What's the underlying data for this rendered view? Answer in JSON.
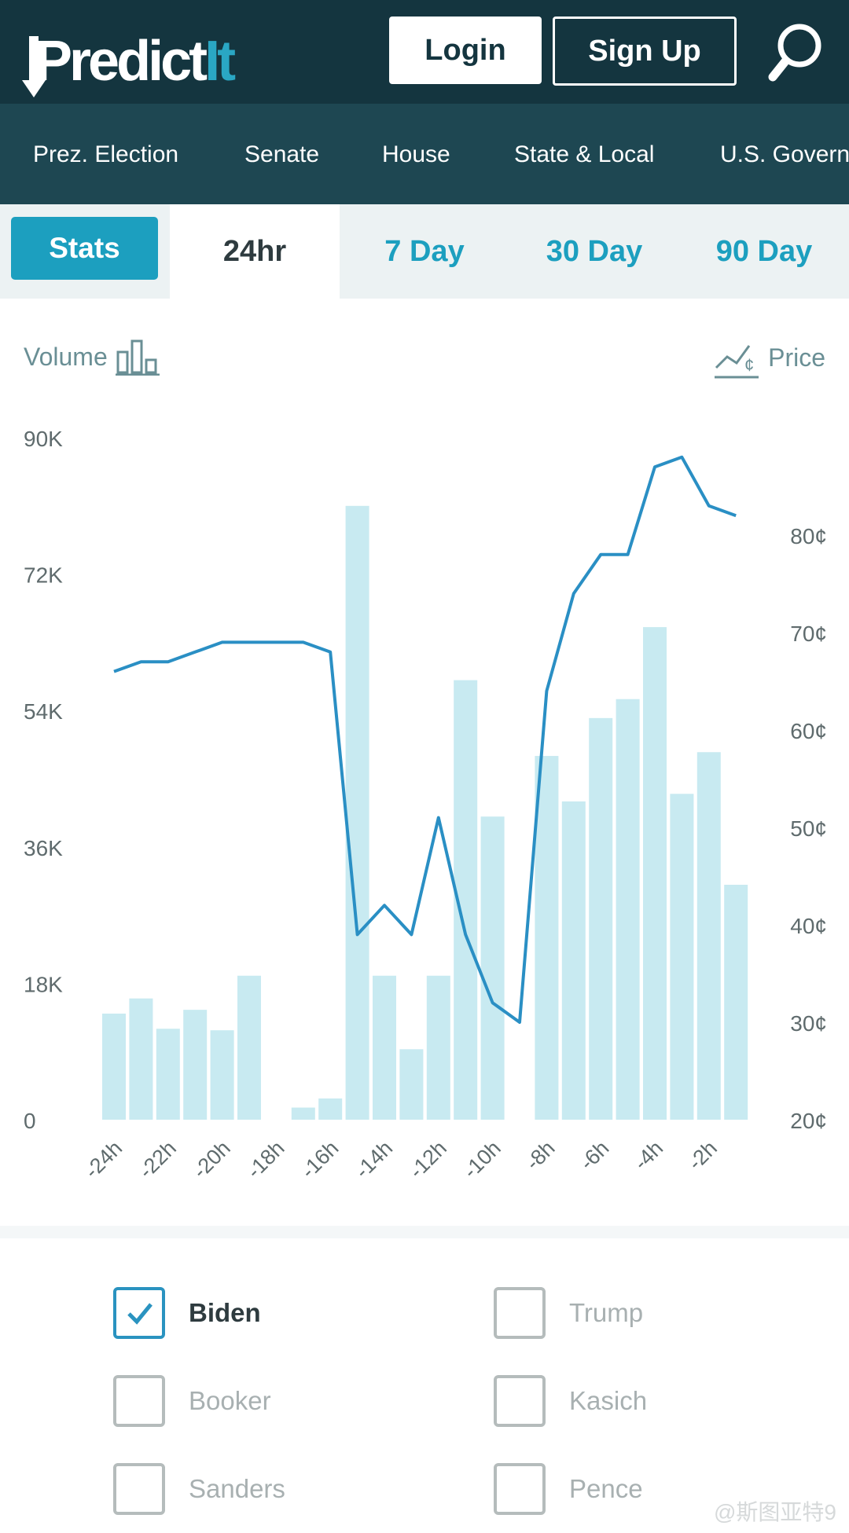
{
  "header": {
    "logo_main": "Predict",
    "logo_accent": "It",
    "login_label": "Login",
    "signup_label": "Sign Up"
  },
  "nav": {
    "items": [
      "Prez. Election",
      "Senate",
      "House",
      "State & Local",
      "U.S. Govern"
    ]
  },
  "tabs": {
    "stats": "Stats",
    "t24": "24hr",
    "t7": "7 Day",
    "t30": "30 Day",
    "t90": "90 Day"
  },
  "chart_labels": {
    "volume": "Volume",
    "price": "Price"
  },
  "chart_data": {
    "type": "bar+line",
    "categories": [
      "-24h",
      "-23h",
      "-22h",
      "-21h",
      "-20h",
      "-19h",
      "-18h",
      "-17h",
      "-16h",
      "-15h",
      "-14h",
      "-13h",
      "-12h",
      "-11h",
      "-10h",
      "-9h",
      "-8h",
      "-7h",
      "-6h",
      "-5h",
      "-4h",
      "-3h",
      "-2h",
      "-1h"
    ],
    "x_tick_labels": [
      "-24h",
      "-22h",
      "-20h",
      "-18h",
      "-16h",
      "-14h",
      "-12h",
      "-10h",
      "-8h",
      "-6h",
      "-4h",
      "-2h"
    ],
    "volume_values": [
      14000,
      16000,
      12000,
      14500,
      11800,
      19000,
      0,
      1600,
      2800,
      81000,
      19000,
      9300,
      19000,
      58000,
      40000,
      0,
      48000,
      42000,
      53000,
      55500,
      65000,
      43000,
      48500,
      31000
    ],
    "price_values": [
      66,
      67,
      67,
      68,
      69,
      69,
      69,
      69,
      68,
      39,
      42,
      39,
      51,
      39,
      32,
      30,
      64,
      74,
      78,
      78,
      87,
      88,
      83,
      82
    ],
    "volume_ticks": [
      "0",
      "18K",
      "36K",
      "54K",
      "72K",
      "90K"
    ],
    "price_ticks": [
      "20¢",
      "30¢",
      "40¢",
      "50¢",
      "60¢",
      "70¢",
      "80¢"
    ],
    "volume_range": [
      0,
      90000
    ],
    "price_range": [
      20,
      90
    ],
    "colors": {
      "bars": "#c8eaf1",
      "line": "#2a8fc4"
    }
  },
  "candidates": [
    {
      "name": "Biden",
      "checked": true
    },
    {
      "name": "Trump",
      "checked": false
    },
    {
      "name": "Booker",
      "checked": false
    },
    {
      "name": "Kasich",
      "checked": false
    },
    {
      "name": "Sanders",
      "checked": false
    },
    {
      "name": "Pence",
      "checked": false
    }
  ],
  "watermark": "@斯图亚特9"
}
